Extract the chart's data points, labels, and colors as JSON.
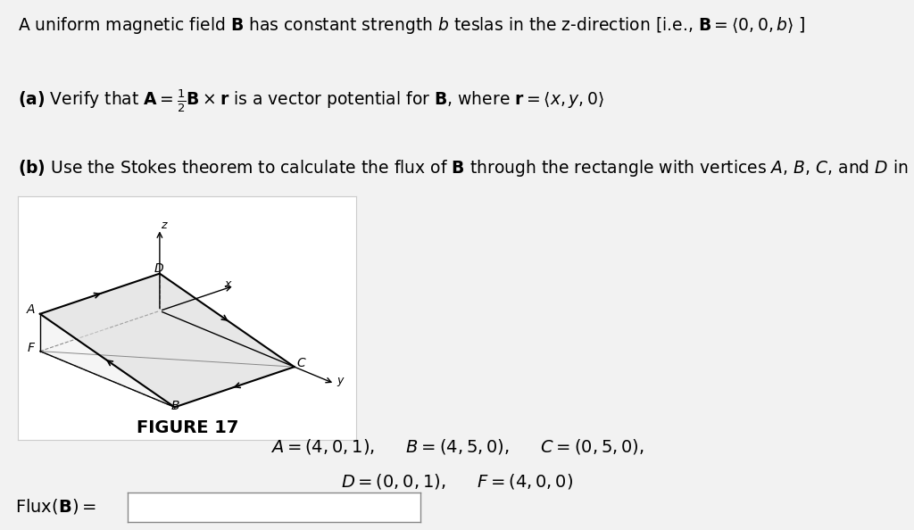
{
  "bg_color": "#f2f2f2",
  "fig_bg": "#ffffff",
  "vertices_3d": {
    "A": [
      4,
      0,
      1
    ],
    "B": [
      4,
      5,
      0
    ],
    "C": [
      0,
      5,
      0
    ],
    "D": [
      0,
      0,
      1
    ],
    "F": [
      4,
      0,
      0
    ],
    "O": [
      0,
      0,
      0
    ]
  },
  "view_elev": 20,
  "view_azim": -55,
  "figure_label": "FIGURE 17",
  "coords_line1": "A = (4, 0, 1),\\quad B = (4, 5, 0),\\quad C = (0, 5, 0),",
  "coords_line2": "D = (0, 0, 1),\\quad F = (4, 0, 0)"
}
